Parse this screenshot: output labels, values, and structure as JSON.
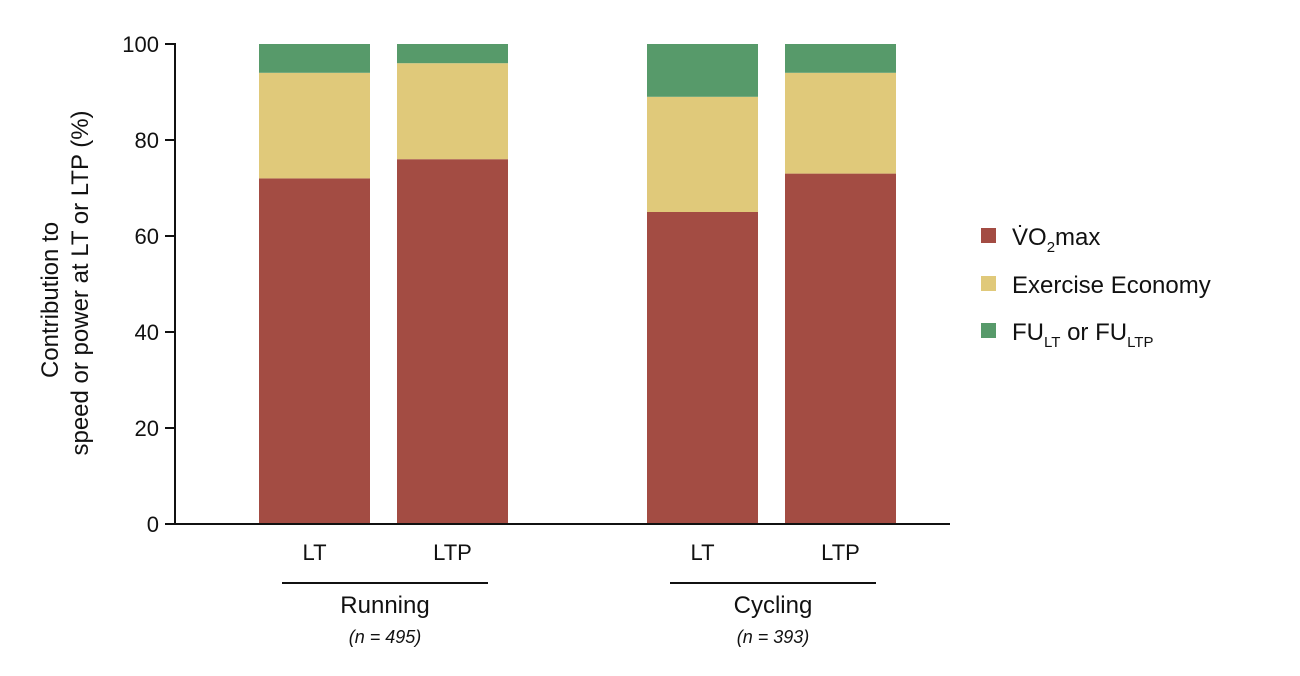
{
  "chart_data": {
    "type": "bar",
    "stacked": true,
    "categories": [
      "LT",
      "LTP",
      "LT",
      "LTP"
    ],
    "groups": [
      {
        "label": "Running",
        "note": "(n = 495)",
        "categories": [
          "LT",
          "LTP"
        ]
      },
      {
        "label": "Cycling",
        "note": "(n = 393)",
        "categories": [
          "LT",
          "LTP"
        ]
      }
    ],
    "series": [
      {
        "name_main": "V̇O",
        "name_sub": "2",
        "name_tail": "max",
        "values": [
          72,
          76,
          65,
          73
        ],
        "color": "#a34c43"
      },
      {
        "name_main": "Exercise Economy",
        "values": [
          22,
          20,
          24,
          21
        ],
        "color": "#e0c97a"
      },
      {
        "name_main": "FU",
        "name_sub": "LT",
        "name_mid": " or FU",
        "name_sub2": "LTP",
        "values": [
          6,
          4,
          11,
          6
        ],
        "color": "#579a6a"
      }
    ],
    "ylabel_line1": "Contribution to",
    "ylabel_line2": "speed or power at LT or LTP (%)",
    "ylim": [
      0,
      100
    ],
    "yticks": [
      0,
      20,
      40,
      60,
      80,
      100
    ],
    "legend_position": "right",
    "grid": false
  }
}
